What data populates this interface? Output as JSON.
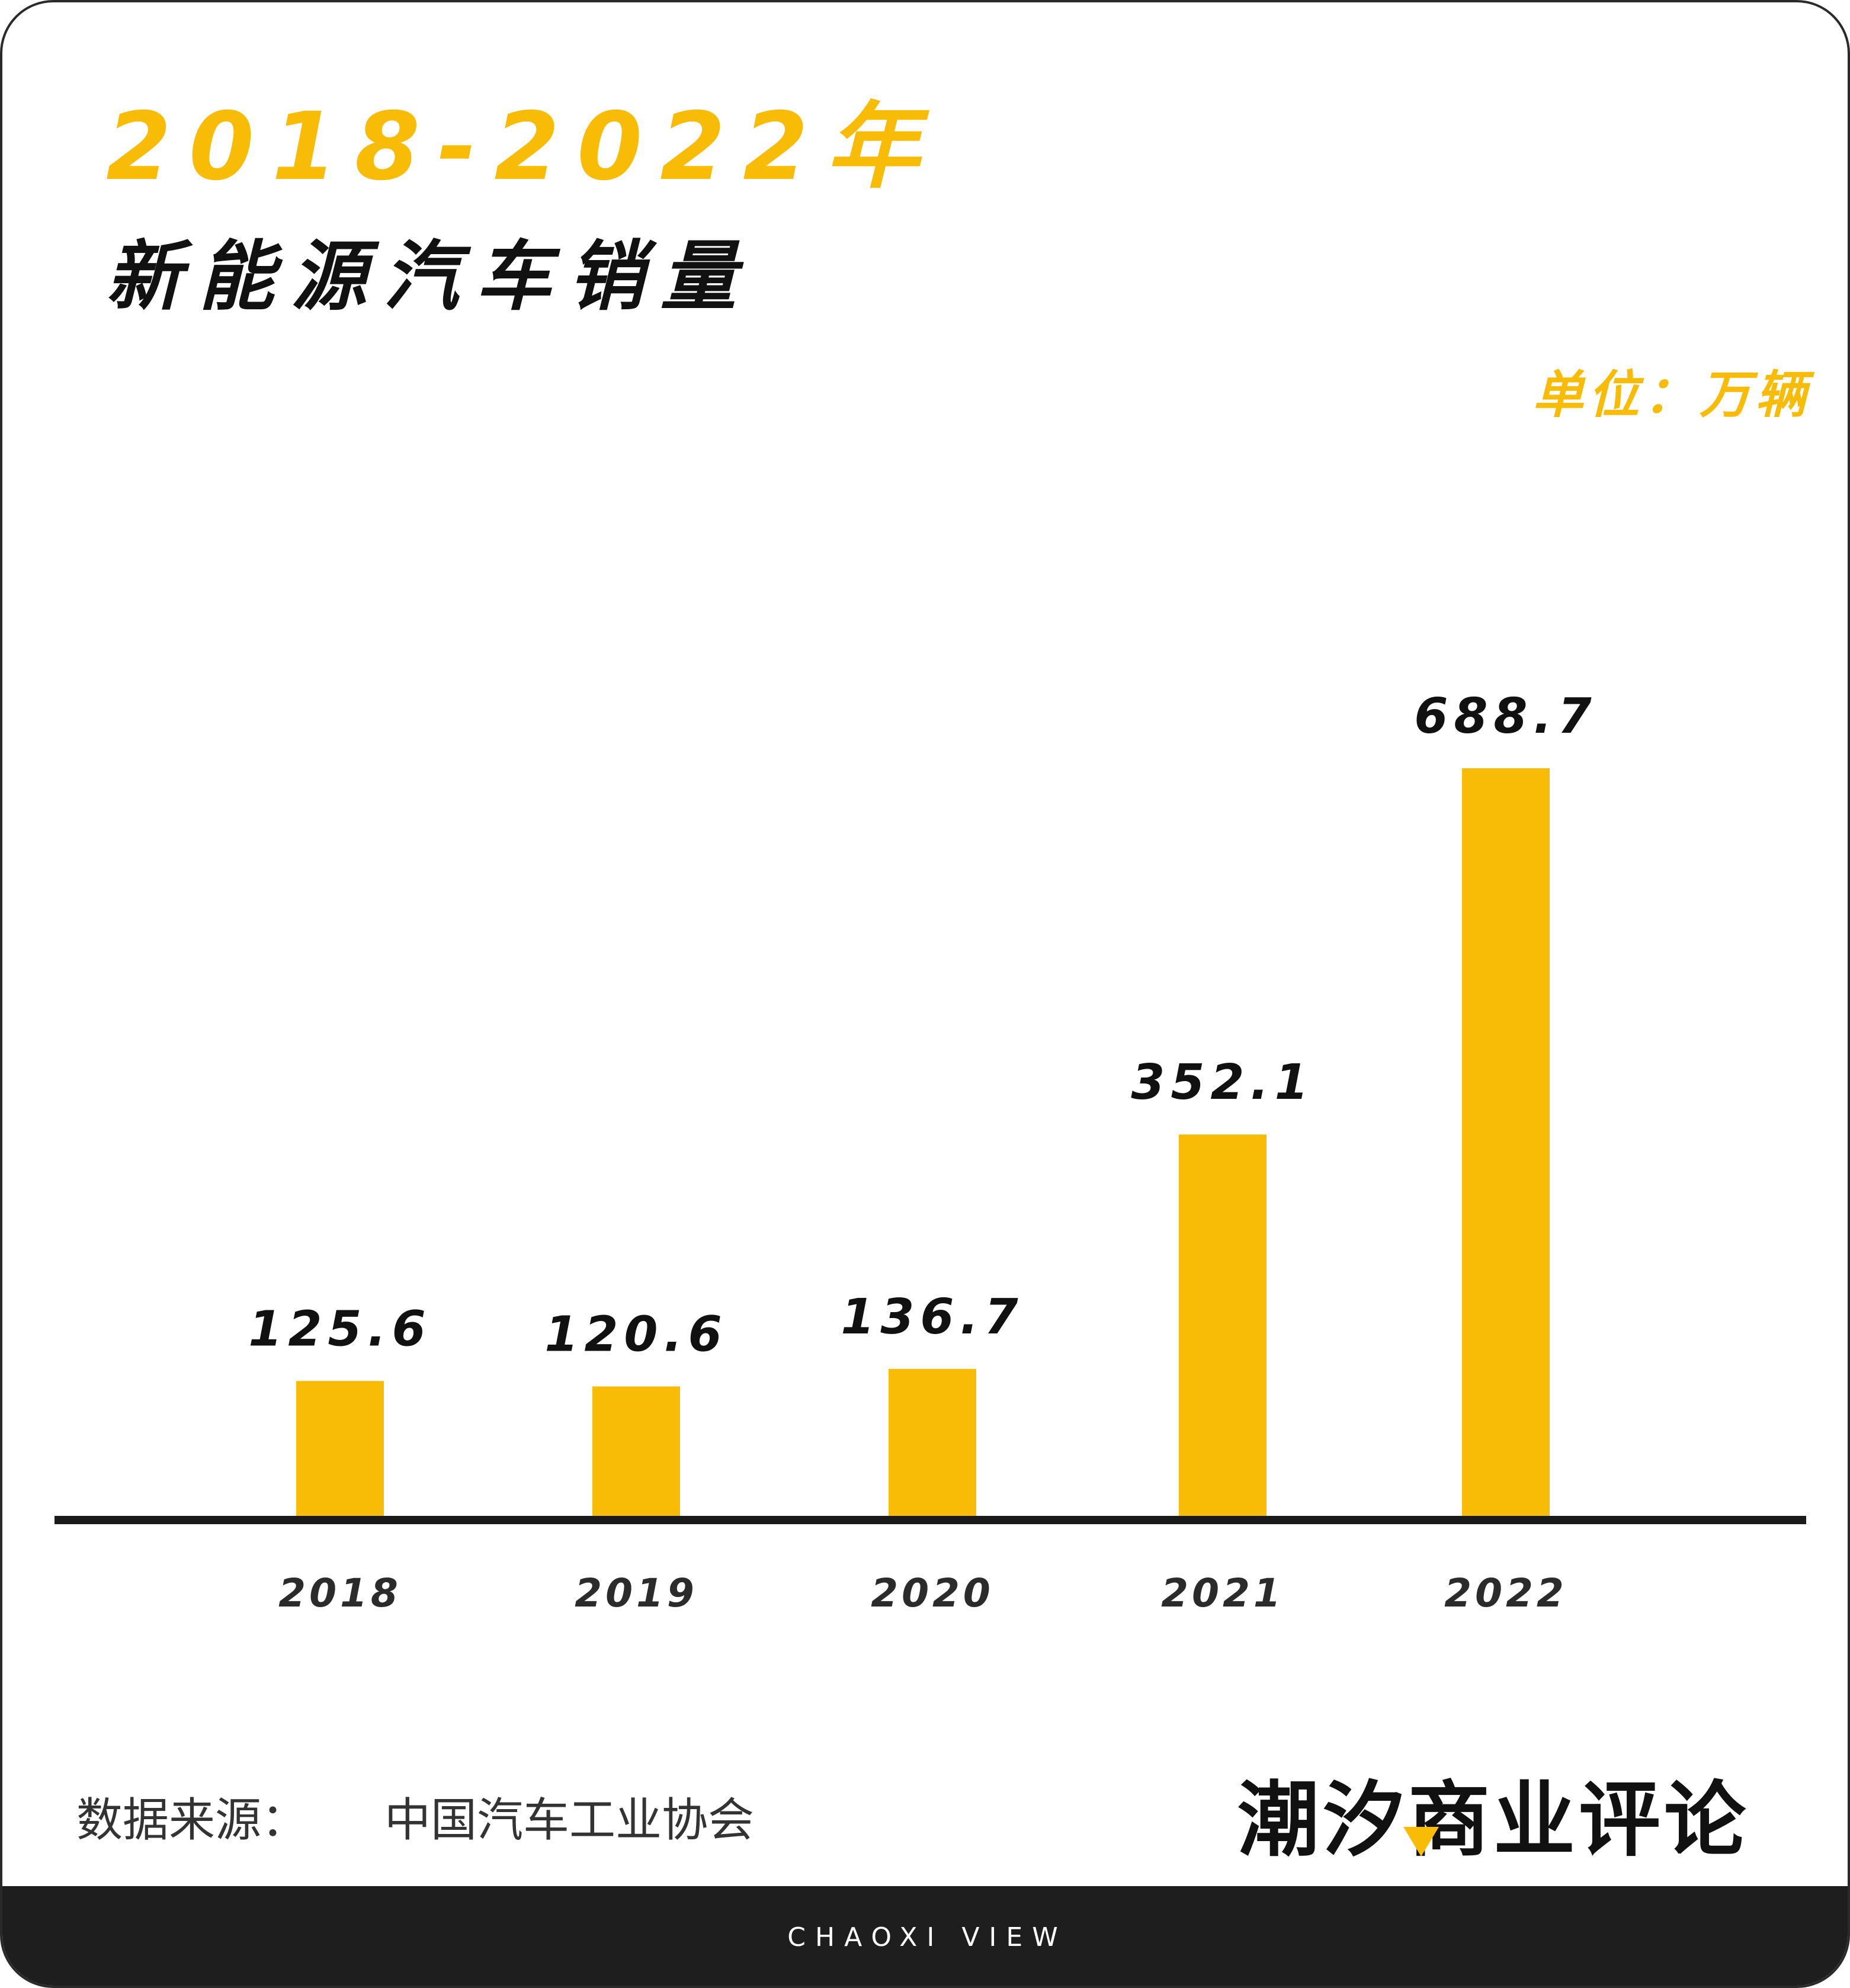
{
  "header": {
    "title_years": "2018-2022年",
    "title_main": "新能源汽车销量",
    "unit": "单位：万辆"
  },
  "colors": {
    "accent": "#F8BC07",
    "text_dark": "#111111",
    "axis": "#1a1a1a",
    "footer_bg": "#1e1e1e"
  },
  "chart_data": {
    "type": "bar",
    "title": "2018-2022年 新能源汽车销量",
    "ylabel": "",
    "xlabel": "",
    "unit": "单位：万辆",
    "categories": [
      "2018",
      "2019",
      "2020",
      "2021",
      "2022"
    ],
    "values": [
      125.6,
      120.6,
      136.7,
      352.1,
      688.7
    ],
    "value_labels": [
      "125.6",
      "120.6",
      "136.7",
      "352.1",
      "688.7"
    ],
    "ylim": [
      0,
      700
    ],
    "grid": false,
    "legend": "none"
  },
  "footer": {
    "source_label": "数据来源：",
    "source_org": "中国汽车工业协会",
    "brand": "潮汐商业评论",
    "tagline": "CHAOXI VIEW"
  }
}
